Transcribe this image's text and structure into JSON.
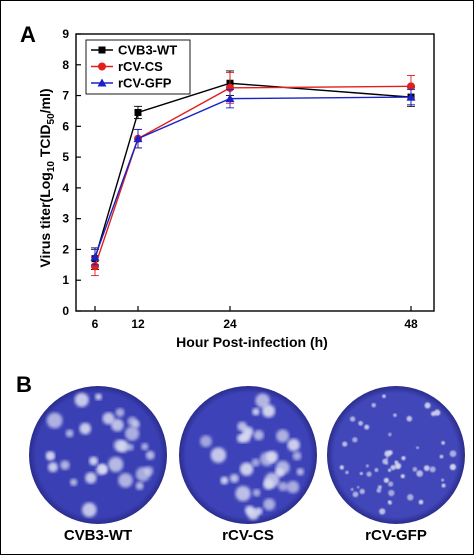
{
  "panels": {
    "a_label": "A",
    "b_label": "B"
  },
  "chart_data": {
    "type": "line",
    "title": "",
    "xlabel": "Hour Post-infection (h)",
    "ylabel_parts": [
      "Virus titer(Log",
      "10",
      " TCID",
      "50",
      "/ml)"
    ],
    "x": [
      6,
      12,
      24,
      48
    ],
    "xticks": [
      "6",
      "12",
      "24",
      "48"
    ],
    "x_positions_note": "",
    "ylim": [
      0,
      9
    ],
    "yticks": [
      "0",
      "1",
      "2",
      "3",
      "4",
      "5",
      "6",
      "7",
      "8",
      "9"
    ],
    "grid": false,
    "legend_position": "top-left",
    "series": [
      {
        "name": "CVB3-WT",
        "color": "#000000",
        "marker": "square",
        "values": [
          1.7,
          6.45,
          7.4,
          6.95
        ],
        "errors": [
          0.35,
          0.2,
          0.4,
          0.3
        ]
      },
      {
        "name": "rCV-CS",
        "color": "#e0201b",
        "marker": "circle",
        "values": [
          1.45,
          5.6,
          7.25,
          7.3
        ],
        "errors": [
          0.3,
          0.3,
          0.5,
          0.35
        ]
      },
      {
        "name": "rCV-GFP",
        "color": "#1a22c8",
        "marker": "triangle",
        "values": [
          1.75,
          5.6,
          6.9,
          6.95
        ],
        "errors": [
          0.25,
          0.3,
          0.3,
          0.25
        ]
      }
    ]
  },
  "plaques": {
    "items": [
      {
        "label": "CVB3-WT",
        "color": "#3a3fb4"
      },
      {
        "label": "rCV-CS",
        "color": "#3d42b8"
      },
      {
        "label": "rCV-GFP",
        "color": "#4146b8"
      }
    ]
  }
}
